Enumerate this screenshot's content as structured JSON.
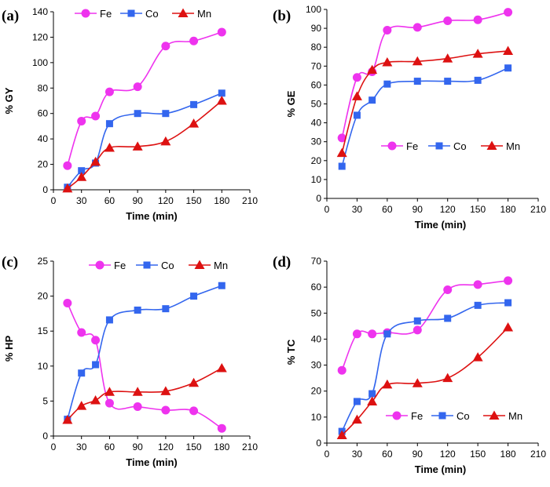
{
  "colors": {
    "Fe": "#ee33ee",
    "Co": "#3366ee",
    "Mn": "#dd1111"
  },
  "chart_data": [
    {
      "type": "line",
      "panel": "(a)",
      "ylabel": "% GY",
      "xlabel": "Time (min)",
      "xlim": [
        0,
        210
      ],
      "xticks": [
        "0",
        "30",
        "60",
        "90",
        "120",
        "150",
        "180",
        "210"
      ],
      "ylim": [
        0,
        140
      ],
      "yticks": [
        "0",
        "20",
        "40",
        "60",
        "80",
        "100",
        "120",
        "140"
      ],
      "legend_position": "top",
      "x": [
        15,
        30,
        45,
        60,
        90,
        120,
        150,
        180
      ],
      "series": [
        {
          "name": "Fe",
          "values": [
            19,
            54,
            58,
            77,
            81,
            113,
            117,
            124
          ]
        },
        {
          "name": "Co",
          "values": [
            2,
            15,
            21,
            52,
            60,
            60,
            67,
            76
          ]
        },
        {
          "name": "Mn",
          "values": [
            1,
            10,
            22,
            33,
            34,
            38,
            52,
            70
          ]
        }
      ]
    },
    {
      "type": "line",
      "panel": "(b)",
      "ylabel": "% GE",
      "xlabel": "Time (min)",
      "xlim": [
        0,
        210
      ],
      "xticks": [
        "0",
        "30",
        "60",
        "90",
        "120",
        "150",
        "180",
        "210"
      ],
      "ylim": [
        0,
        100
      ],
      "yticks": [
        "0",
        "10",
        "20",
        "30",
        "40",
        "50",
        "60",
        "70",
        "80",
        "90",
        "100"
      ],
      "legend_position": "lower-right",
      "x": [
        15,
        30,
        45,
        60,
        90,
        120,
        150,
        180
      ],
      "series": [
        {
          "name": "Fe",
          "values": [
            32,
            64,
            67,
            89,
            90.5,
            94,
            94.5,
            98.5
          ]
        },
        {
          "name": "Co",
          "values": [
            17,
            44,
            52,
            60.5,
            62,
            62,
            62.5,
            69
          ]
        },
        {
          "name": "Mn",
          "values": [
            24,
            54,
            68,
            72,
            72.5,
            74,
            76.5,
            78
          ]
        }
      ]
    },
    {
      "type": "line",
      "panel": "(c)",
      "ylabel": "% HP",
      "xlabel": "Time (min)",
      "xlim": [
        0,
        210
      ],
      "xticks": [
        "0",
        "30",
        "60",
        "90",
        "120",
        "150",
        "180",
        "210"
      ],
      "ylim": [
        0,
        25
      ],
      "yticks": [
        "0",
        "5",
        "10",
        "15",
        "20",
        "25"
      ],
      "legend_position": "top",
      "x": [
        15,
        30,
        45,
        60,
        90,
        120,
        150,
        180
      ],
      "series": [
        {
          "name": "Fe",
          "values": [
            19,
            14.8,
            13.7,
            4.7,
            4.2,
            3.7,
            3.6,
            1.1
          ]
        },
        {
          "name": "Co",
          "values": [
            2.4,
            9.0,
            10.2,
            16.6,
            18,
            18.2,
            20,
            21.5
          ]
        },
        {
          "name": "Mn",
          "values": [
            2.3,
            4.3,
            5.1,
            6.3,
            6.3,
            6.4,
            7.6,
            9.7
          ]
        }
      ]
    },
    {
      "type": "line",
      "panel": "(d)",
      "ylabel": "% TC",
      "xlabel": "Time (min)",
      "xlim": [
        0,
        210
      ],
      "xticks": [
        "0",
        "30",
        "60",
        "90",
        "120",
        "150",
        "180",
        "210"
      ],
      "ylim": [
        0,
        70
      ],
      "yticks": [
        "0",
        "10",
        "20",
        "30",
        "40",
        "50",
        "60",
        "70"
      ],
      "legend_position": "lower-right",
      "x": [
        15,
        30,
        45,
        60,
        90,
        120,
        150,
        180
      ],
      "series": [
        {
          "name": "Fe",
          "values": [
            28,
            42,
            42,
            42.5,
            43.5,
            59,
            61,
            62.5
          ]
        },
        {
          "name": "Co",
          "values": [
            4.5,
            16,
            19,
            42,
            47,
            48,
            53,
            54
          ]
        },
        {
          "name": "Mn",
          "values": [
            3,
            9,
            16,
            22.5,
            23,
            25,
            33,
            44.5
          ]
        }
      ]
    }
  ]
}
